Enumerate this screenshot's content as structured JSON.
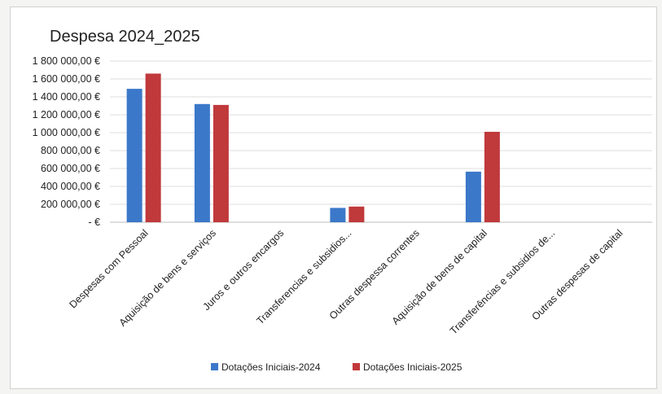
{
  "chart_data": {
    "type": "bar",
    "title": "Despesa 2024_2025",
    "xlabel": "",
    "ylabel": "",
    "categories": [
      "Despesas com Pessoal",
      "Aquisição de bens e serviços",
      "Juros e outros encargos",
      "Transferencias e subsidios...",
      "Outras despessa correntes",
      "Aquisição de bens de capital",
      "Transferências e subsidios de...",
      "Outras despesas de capital"
    ],
    "series": [
      {
        "name": "Dotações Iniciais-2024",
        "color": "#3b78c9",
        "values": [
          1490000,
          1320000,
          0,
          160000,
          0,
          565000,
          0,
          0
        ]
      },
      {
        "name": "Dotações Iniciais-2025",
        "color": "#c0393b",
        "values": [
          1660000,
          1310000,
          0,
          175000,
          0,
          1010000,
          0,
          0
        ]
      }
    ],
    "ylim": [
      0,
      1800000
    ],
    "yticks": [
      {
        "value": 0,
        "label": "-   €"
      },
      {
        "value": 200000,
        "label": "200 000,00 €"
      },
      {
        "value": 400000,
        "label": "400 000,00 €"
      },
      {
        "value": 600000,
        "label": "600 000,00 €"
      },
      {
        "value": 800000,
        "label": "800 000,00 €"
      },
      {
        "value": 1000000,
        "label": "1 000 000,00 €"
      },
      {
        "value": 1200000,
        "label": "1 200 000,00 €"
      },
      {
        "value": 1400000,
        "label": "1 400 000,00 €"
      },
      {
        "value": 1600000,
        "label": "1 600 000,00 €"
      },
      {
        "value": 1800000,
        "label": "1 800 000,00 €"
      }
    ],
    "grid": true,
    "legend_position": "bottom"
  }
}
